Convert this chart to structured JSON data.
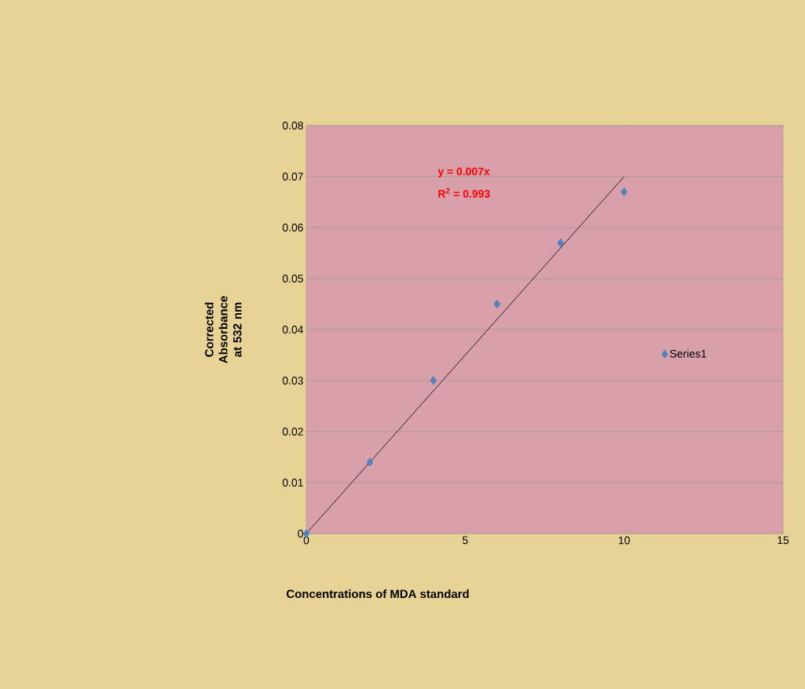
{
  "chart_data": {
    "type": "scatter",
    "xlabel": "Concentrations of  MDA standard",
    "ylabel": "Corrected Absorbance at  532 nm",
    "annotations": [
      "y = 0.007x",
      "R$^{2}$ = 0.993"
    ],
    "series": [
      {
        "name": "Series1",
        "color": "#4f81bd",
        "marker": "diamond",
        "x": [
          0,
          2,
          4,
          6,
          8,
          10
        ],
        "values": [
          0,
          0.014,
          0.03,
          0.045,
          0.057,
          0.067
        ]
      },
      {
        "type": "line",
        "color": "#000000",
        "marker": "none",
        "x": [
          0,
          10
        ],
        "values": [
          0,
          0.07
        ]
      }
    ],
    "xlim": [
      0,
      15
    ],
    "xticks": [
      0,
      5,
      10,
      15
    ],
    "ylim": [
      0,
      0.08
    ],
    "yticks": [
      0,
      0.01,
      0.02,
      0.03,
      0.04,
      0.05,
      0.06,
      0.07,
      0.08
    ],
    "grid": "y",
    "legend": "right"
  }
}
